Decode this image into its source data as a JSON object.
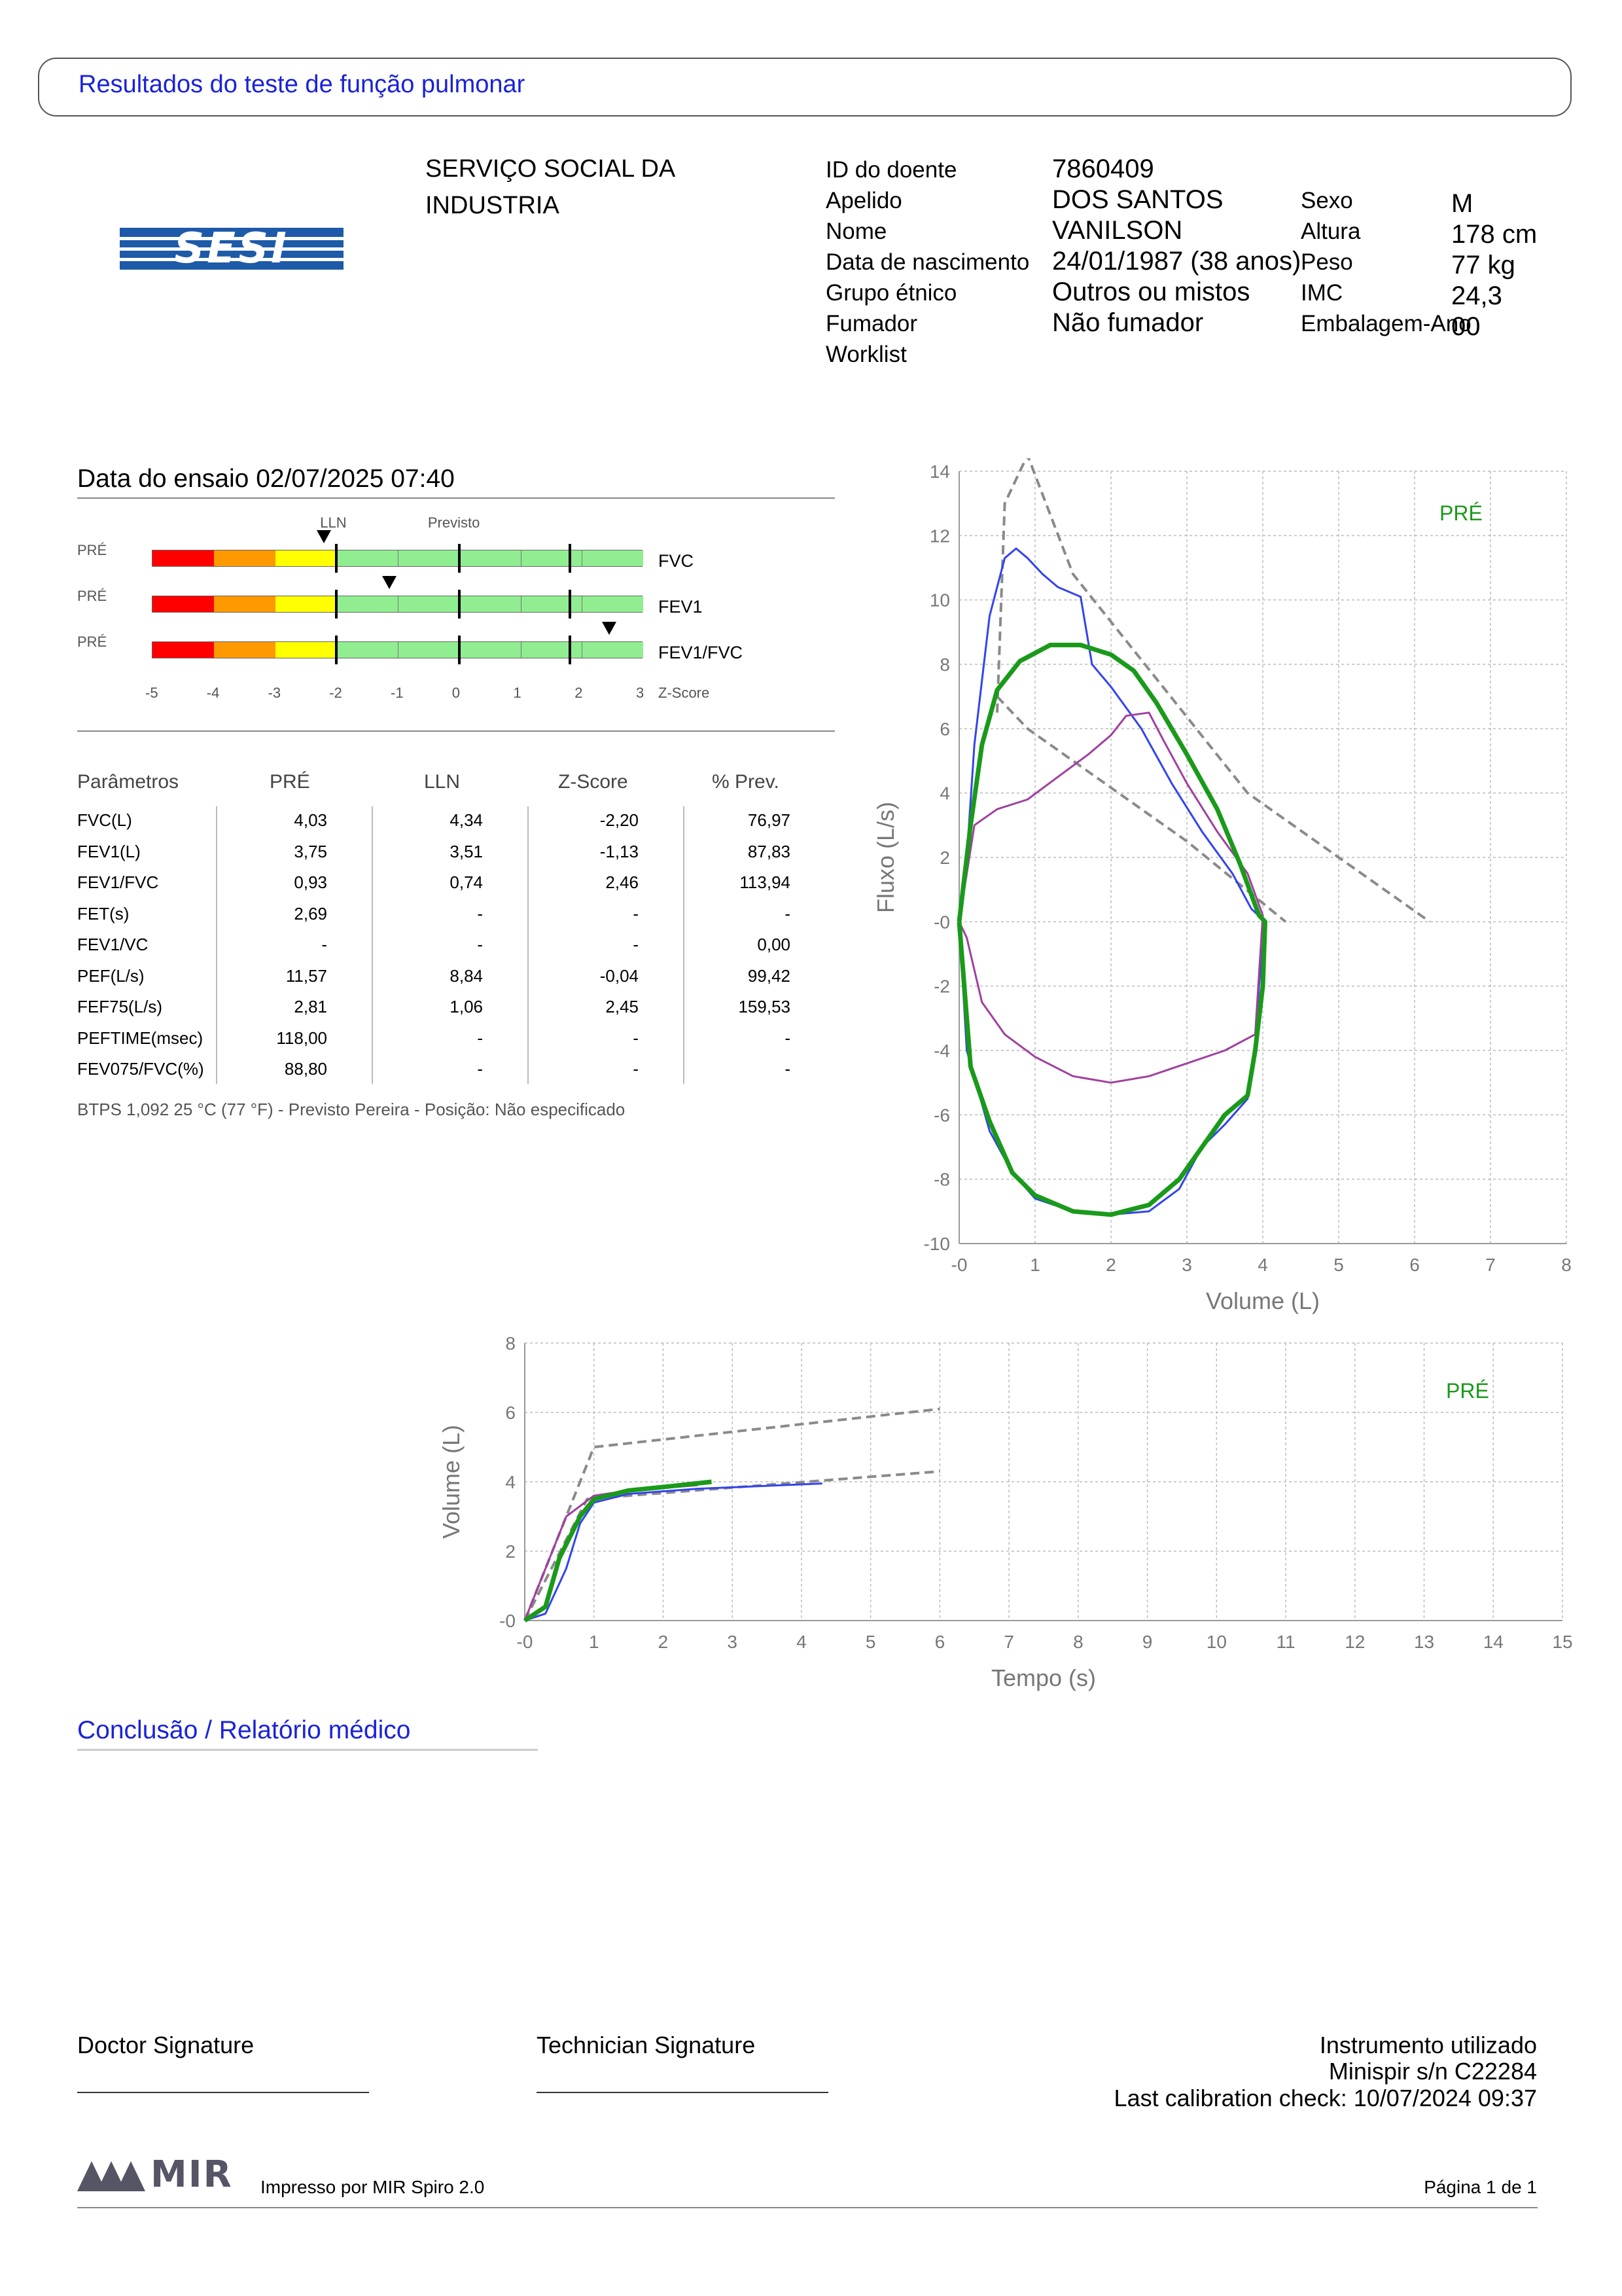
{
  "header": {
    "title": "Resultados do teste de função pulmonar"
  },
  "organization": {
    "logo_text": "SESI",
    "name": "SERVIÇO SOCIAL DA\nINDUSTRIA"
  },
  "patient": {
    "fields": [
      {
        "label": "ID do doente",
        "value": "7860409"
      },
      {
        "label": "Apelido",
        "value": "DOS SANTOS"
      },
      {
        "label": "Nome",
        "value": "VANILSON"
      },
      {
        "label": "Data de nascimento",
        "value": "24/01/1987 (38 anos)"
      },
      {
        "label": "Grupo étnico",
        "value": "Outros ou mistos"
      },
      {
        "label": "Fumador",
        "value": "Não fumador"
      },
      {
        "label": "Worklist",
        "value": ""
      }
    ],
    "side_fields": [
      {
        "label": "Sexo",
        "value": "M"
      },
      {
        "label": "Altura",
        "value": "178 cm"
      },
      {
        "label": "Peso",
        "value": "77 kg"
      },
      {
        "label": "IMC",
        "value": "24,3"
      },
      {
        "label": "Embalagem-Ano",
        "value": "00"
      }
    ]
  },
  "test": {
    "date": "Data do ensaio 02/07/2025 07:40"
  },
  "zscore_panel": {
    "lln_label": "LLN",
    "predicted_label": "Previsto",
    "rows": [
      {
        "tag": "PRÉ",
        "param": "FVC",
        "z": -2.2
      },
      {
        "tag": "PRÉ",
        "param": "FEV1",
        "z": -1.13
      },
      {
        "tag": "PRÉ",
        "param": "FEV1/FVC",
        "z": 2.46
      }
    ],
    "axis_ticks": [
      "-5",
      "-4",
      "-3",
      "-2",
      "-1",
      "0",
      "1",
      "2",
      "3"
    ],
    "axis_label": "Z-Score",
    "colors": {
      "red": "#ff0000",
      "orange": "#ff9900",
      "yellow": "#ffff00",
      "green": "#90ee90"
    }
  },
  "table": {
    "headers": [
      "Parâmetros",
      "PRÉ",
      "LLN",
      "Z-Score",
      "% Prev."
    ],
    "rows": [
      [
        "FVC(L)",
        "4,03",
        "4,34",
        "-2,20",
        "76,97"
      ],
      [
        "FEV1(L)",
        "3,75",
        "3,51",
        "-1,13",
        "87,83"
      ],
      [
        "FEV1/FVC",
        "0,93",
        "0,74",
        "2,46",
        "113,94"
      ],
      [
        "FET(s)",
        "2,69",
        "-",
        "-",
        "-"
      ],
      [
        "FEV1/VC",
        "-",
        "-",
        "-",
        "0,00"
      ],
      [
        "PEF(L/s)",
        "11,57",
        "8,84",
        "-0,04",
        "99,42"
      ],
      [
        "FEF75(L/s)",
        "2,81",
        "1,06",
        "2,45",
        "159,53"
      ],
      [
        "PEFTIME(msec)",
        "118,00",
        "-",
        "-",
        "-"
      ],
      [
        "FEV075/FVC(%)",
        "88,80",
        "-",
        "-",
        "-"
      ]
    ],
    "footnote": "BTPS 1,092 25 °C (77 °F) - Previsto Pereira - Posição: Não especificado"
  },
  "chart_data": [
    {
      "type": "line",
      "name": "flow-volume",
      "xlabel": "Volume (L)",
      "ylabel": "Fluxo (L/s)",
      "xlim": [
        0,
        8
      ],
      "ylim": [
        -10,
        14
      ],
      "xticks": [
        "-0",
        "1",
        "2",
        "3",
        "4",
        "5",
        "6",
        "7",
        "8"
      ],
      "yticks": [
        "-10",
        "-8",
        "-6",
        "-4",
        "-2",
        "-0",
        "2",
        "4",
        "6",
        "8",
        "10",
        "12",
        "14"
      ],
      "legend": "PRÉ",
      "grid": true,
      "series": [
        {
          "color": "#8a8a8a",
          "dashed": true,
          "points": [
            [
              0.5,
              6.5
            ],
            [
              0.6,
              13
            ],
            [
              0.9,
              14.5
            ],
            [
              1.5,
              10.8
            ],
            [
              3.8,
              4
            ],
            [
              6.2,
              0
            ]
          ]
        },
        {
          "color": "#8a8a8a",
          "dashed": true,
          "points": [
            [
              0.5,
              7
            ],
            [
              0.9,
              6
            ],
            [
              1.5,
              5
            ],
            [
              3,
              2.5
            ],
            [
              4.3,
              0
            ]
          ]
        },
        {
          "color": "#3344ee",
          "dashed": false,
          "points": [
            [
              0,
              0
            ],
            [
              0.1,
              2
            ],
            [
              0.2,
              5.5
            ],
            [
              0.4,
              9.5
            ],
            [
              0.6,
              11.3
            ],
            [
              0.75,
              11.6
            ],
            [
              0.9,
              11.3
            ],
            [
              1.1,
              10.8
            ],
            [
              1.3,
              10.4
            ],
            [
              1.6,
              10.1
            ],
            [
              1.75,
              8
            ],
            [
              2,
              7.3
            ],
            [
              2.4,
              6
            ],
            [
              2.8,
              4.3
            ],
            [
              3.2,
              2.8
            ],
            [
              3.6,
              1.5
            ],
            [
              3.85,
              0.4
            ],
            [
              4.03,
              0
            ],
            [
              3.95,
              -2
            ],
            [
              3.9,
              -4
            ],
            [
              3.8,
              -5.5
            ],
            [
              3.5,
              -6.3
            ],
            [
              3.2,
              -7
            ],
            [
              2.9,
              -8.3
            ],
            [
              2.5,
              -9
            ],
            [
              2,
              -9.1
            ],
            [
              1.5,
              -9
            ],
            [
              1,
              -8.6
            ],
            [
              0.7,
              -7.8
            ],
            [
              0.4,
              -6.5
            ],
            [
              0.1,
              -4
            ],
            [
              0,
              0
            ]
          ]
        },
        {
          "color": "#a040a0",
          "dashed": false,
          "points": [
            [
              0,
              0
            ],
            [
              0.2,
              3
            ],
            [
              0.5,
              3.5
            ],
            [
              0.9,
              3.8
            ],
            [
              1.3,
              4.5
            ],
            [
              1.7,
              5.2
            ],
            [
              2,
              5.8
            ],
            [
              2.2,
              6.4
            ],
            [
              2.5,
              6.5
            ],
            [
              2.7,
              5.6
            ],
            [
              3,
              4.3
            ],
            [
              3.4,
              2.8
            ],
            [
              3.8,
              1.5
            ],
            [
              4,
              0.2
            ],
            [
              3.9,
              -3.5
            ],
            [
              3.5,
              -4
            ],
            [
              3,
              -4.4
            ],
            [
              2.5,
              -4.8
            ],
            [
              2,
              -5
            ],
            [
              1.5,
              -4.8
            ],
            [
              1,
              -4.2
            ],
            [
              0.6,
              -3.5
            ],
            [
              0.3,
              -2.5
            ],
            [
              0.1,
              -0.5
            ],
            [
              0,
              0
            ]
          ]
        },
        {
          "color": "#1a9a1a",
          "dashed": false,
          "bold": true,
          "points": [
            [
              0,
              0
            ],
            [
              0.15,
              3
            ],
            [
              0.3,
              5.5
            ],
            [
              0.5,
              7.2
            ],
            [
              0.8,
              8.1
            ],
            [
              1.2,
              8.6
            ],
            [
              1.6,
              8.6
            ],
            [
              2,
              8.3
            ],
            [
              2.3,
              7.8
            ],
            [
              2.6,
              6.8
            ],
            [
              3,
              5.2
            ],
            [
              3.4,
              3.5
            ],
            [
              3.7,
              1.8
            ],
            [
              3.95,
              0.2
            ],
            [
              4.03,
              0
            ],
            [
              4,
              -2
            ],
            [
              3.9,
              -4
            ],
            [
              3.8,
              -5.4
            ],
            [
              3.5,
              -6
            ],
            [
              3.2,
              -7
            ],
            [
              2.9,
              -8
            ],
            [
              2.5,
              -8.8
            ],
            [
              2,
              -9.1
            ],
            [
              1.5,
              -9
            ],
            [
              1,
              -8.5
            ],
            [
              0.7,
              -7.8
            ],
            [
              0.4,
              -6.2
            ],
            [
              0.15,
              -4.5
            ],
            [
              0,
              0
            ]
          ]
        }
      ]
    },
    {
      "type": "line",
      "name": "volume-time",
      "xlabel": "Tempo (s)",
      "ylabel": "Volume (L)",
      "xlim": [
        0,
        15
      ],
      "ylim": [
        0,
        8
      ],
      "xticks": [
        "-0",
        "1",
        "2",
        "3",
        "4",
        "5",
        "6",
        "7",
        "8",
        "9",
        "10",
        "11",
        "12",
        "13",
        "14",
        "15"
      ],
      "yticks": [
        "-0",
        "2",
        "4",
        "6",
        "8"
      ],
      "legend": "PRÉ",
      "grid": true,
      "series": [
        {
          "color": "#8a8a8a",
          "dashed": true,
          "points": [
            [
              0,
              0
            ],
            [
              1,
              5
            ],
            [
              6,
              6.1
            ]
          ]
        },
        {
          "color": "#8a8a8a",
          "dashed": true,
          "points": [
            [
              0,
              0
            ],
            [
              0.9,
              3.5
            ],
            [
              1.5,
              3.6
            ],
            [
              6,
              4.3
            ]
          ]
        },
        {
          "color": "#3344ee",
          "dashed": false,
          "points": [
            [
              0,
              0
            ],
            [
              0.3,
              0.2
            ],
            [
              0.6,
              1.5
            ],
            [
              0.8,
              2.8
            ],
            [
              1,
              3.4
            ],
            [
              1.5,
              3.65
            ],
            [
              2.5,
              3.8
            ],
            [
              4.3,
              3.95
            ]
          ]
        },
        {
          "color": "#a040a0",
          "dashed": false,
          "points": [
            [
              0,
              0
            ],
            [
              0.3,
              1.5
            ],
            [
              0.6,
              3
            ],
            [
              1,
              3.6
            ],
            [
              1.5,
              3.75
            ],
            [
              2.5,
              3.9
            ]
          ]
        },
        {
          "color": "#1a9a1a",
          "dashed": false,
          "bold": true,
          "points": [
            [
              0,
              0
            ],
            [
              0.3,
              0.4
            ],
            [
              0.5,
              1.8
            ],
            [
              0.8,
              3.0
            ],
            [
              1,
              3.5
            ],
            [
              1.5,
              3.75
            ],
            [
              2,
              3.85
            ],
            [
              2.7,
              4.0
            ]
          ]
        }
      ]
    }
  ],
  "conclusion": {
    "title": "Conclusão / Relatório médico"
  },
  "signatures": {
    "doctor": "Doctor Signature",
    "technician": "Technician Signature"
  },
  "instrument": {
    "label": "Instrumento utilizado",
    "model": "Minispir s/n C22284",
    "calibration": "Last calibration check: 10/07/2024 09:37"
  },
  "footer": {
    "brand": "MIR",
    "printed_by": "Impresso por MIR Spiro 2.0",
    "page": "Página 1 de 1"
  }
}
